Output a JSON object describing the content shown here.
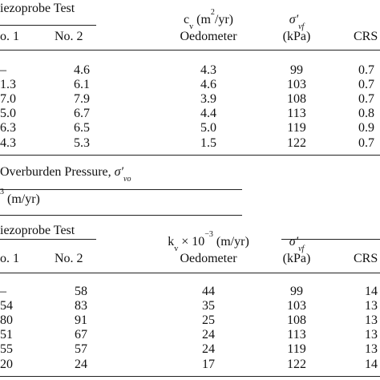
{
  "top_table": {
    "group_header": "iezoprobe Test",
    "col_headers": {
      "probe1": "o. 1",
      "probe2": "No. 2",
      "cv_top": "c",
      "cv_sub": "v",
      "cv_units_pre": "(m",
      "cv_units_sup": "2",
      "cv_units_post": "/yr)",
      "oedometer": "Oedometer",
      "sigma": "σ′",
      "sigma_sub": "vf",
      "kpa": "(kPa)",
      "crs": "CRS"
    },
    "rows": [
      {
        "p1": "–",
        "p2": "4.6",
        "oed": "4.3",
        "sig": "99",
        "crs": "0.7"
      },
      {
        "p1": "1.3",
        "p2": "6.1",
        "oed": "4.6",
        "sig": "103",
        "crs": "0.7"
      },
      {
        "p1": "7.0",
        "p2": "7.9",
        "oed": "3.9",
        "sig": "108",
        "crs": "0.7"
      },
      {
        "p1": "5.0",
        "p2": "6.7",
        "oed": "4.4",
        "sig": "113",
        "crs": "0.8"
      },
      {
        "p1": "6.3",
        "p2": "6.5",
        "oed": "5.0",
        "sig": "119",
        "crs": "0.9"
      },
      {
        "p1": "4.3",
        "p2": "5.3",
        "oed": "1.5",
        "sig": "122",
        "crs": "0.7"
      }
    ]
  },
  "caption": {
    "text": "Overburden Pressure, ",
    "sigma": "σ′",
    "sigma_sub": "vo"
  },
  "kv_heading": {
    "sup": "3",
    "text": " (m/yr)"
  },
  "bottom_table": {
    "group_header": "iezoprobe Test",
    "col_headers": {
      "probe1": "o. 1",
      "probe2": "No. 2",
      "kv_pre": "k",
      "kv_sub": "v",
      "kv_mid": " × 10",
      "kv_sup": "−3",
      "kv_post": " (m/yr)",
      "oedometer": "Oedometer",
      "sigma": "σ′",
      "sigma_sub": "vf",
      "kpa": "(kPa)",
      "crs": "CRS"
    },
    "rows": [
      {
        "p1": "–",
        "p2": "58",
        "oed": "44",
        "sig": "99",
        "crs": "14"
      },
      {
        "p1": "54",
        "p2": "83",
        "oed": "35",
        "sig": "103",
        "crs": "13"
      },
      {
        "p1": "80",
        "p2": "91",
        "oed": "25",
        "sig": "108",
        "crs": "13"
      },
      {
        "p1": "51",
        "p2": "67",
        "oed": "24",
        "sig": "113",
        "crs": "13"
      },
      {
        "p1": "55",
        "p2": "57",
        "oed": "24",
        "sig": "119",
        "crs": "13"
      },
      {
        "p1": "20",
        "p2": "24",
        "oed": "17",
        "sig": "122",
        "crs": "14"
      }
    ]
  }
}
